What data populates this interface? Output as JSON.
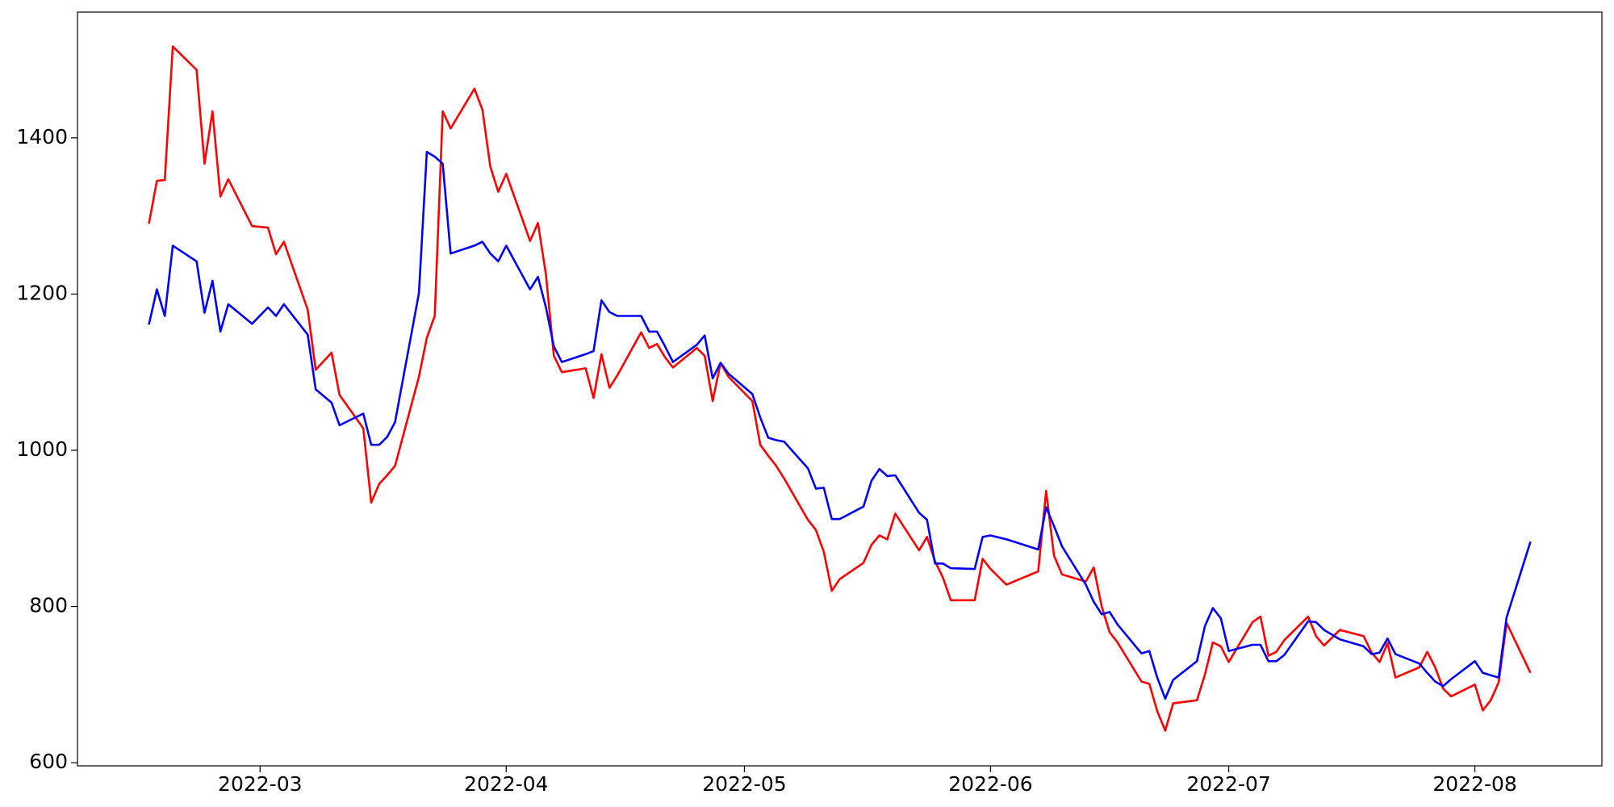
{
  "chart_data": {
    "type": "line",
    "x": [
      "2022-02-15",
      "2022-02-16",
      "2022-02-17",
      "2022-02-18",
      "2022-02-21",
      "2022-02-22",
      "2022-02-23",
      "2022-02-24",
      "2022-02-25",
      "2022-02-28",
      "2022-03-02",
      "2022-03-03",
      "2022-03-04",
      "2022-03-07",
      "2022-03-08",
      "2022-03-10",
      "2022-03-11",
      "2022-03-14",
      "2022-03-15",
      "2022-03-16",
      "2022-03-17",
      "2022-03-18",
      "2022-03-21",
      "2022-03-22",
      "2022-03-23",
      "2022-03-24",
      "2022-03-25",
      "2022-03-28",
      "2022-03-29",
      "2022-03-30",
      "2022-03-31",
      "2022-04-01",
      "2022-04-04",
      "2022-04-05",
      "2022-04-06",
      "2022-04-07",
      "2022-04-08",
      "2022-04-11",
      "2022-04-12",
      "2022-04-13",
      "2022-04-14",
      "2022-04-15",
      "2022-04-18",
      "2022-04-19",
      "2022-04-20",
      "2022-04-21",
      "2022-04-22",
      "2022-04-25",
      "2022-04-26",
      "2022-04-27",
      "2022-04-28",
      "2022-04-29",
      "2022-05-02",
      "2022-05-03",
      "2022-05-04",
      "2022-05-05",
      "2022-05-06",
      "2022-05-09",
      "2022-05-10",
      "2022-05-11",
      "2022-05-12",
      "2022-05-13",
      "2022-05-16",
      "2022-05-17",
      "2022-05-18",
      "2022-05-19",
      "2022-05-20",
      "2022-05-23",
      "2022-05-24",
      "2022-05-25",
      "2022-05-26",
      "2022-05-27",
      "2022-05-30",
      "2022-05-31",
      "2022-06-01",
      "2022-06-03",
      "2022-06-07",
      "2022-06-08",
      "2022-06-09",
      "2022-06-10",
      "2022-06-13",
      "2022-06-14",
      "2022-06-15",
      "2022-06-16",
      "2022-06-17",
      "2022-06-20",
      "2022-06-21",
      "2022-06-22",
      "2022-06-23",
      "2022-06-24",
      "2022-06-27",
      "2022-06-28",
      "2022-06-29",
      "2022-06-30",
      "2022-07-01",
      "2022-07-04",
      "2022-07-05",
      "2022-07-06",
      "2022-07-07",
      "2022-07-08",
      "2022-07-11",
      "2022-07-12",
      "2022-07-13",
      "2022-07-15",
      "2022-07-18",
      "2022-07-19",
      "2022-07-20",
      "2022-07-21",
      "2022-07-22",
      "2022-07-25",
      "2022-07-26",
      "2022-07-27",
      "2022-07-28",
      "2022-07-29",
      "2022-08-01",
      "2022-08-02",
      "2022-08-03",
      "2022-08-04",
      "2022-08-05",
      "2022-08-08"
    ],
    "series": [
      {
        "color": "#ff0000",
        "values": [
          1290,
          1345,
          1346,
          1517,
          1487,
          1367,
          1434,
          1325,
          1347,
          1287,
          1285,
          1251,
          1267,
          1180,
          1103,
          1125,
          1071,
          1028,
          933,
          957,
          968,
          980,
          1094,
          1144,
          1172,
          1434,
          1412,
          1463,
          1436,
          1363,
          1331,
          1354,
          1268,
          1291,
          1225,
          1121,
          1100,
          1105,
          1067,
          1123,
          1080,
          1096,
          1151,
          1131,
          1136,
          1119,
          1106,
          1131,
          1121,
          1063,
          1112,
          1094,
          1063,
          1007,
          993,
          980,
          964,
          911,
          898,
          870,
          820,
          835,
          856,
          879,
          891,
          886,
          919,
          872,
          889,
          858,
          837,
          808,
          808,
          861,
          848,
          828,
          845,
          948,
          865,
          841,
          832,
          850,
          800,
          767,
          754,
          704,
          701,
          666,
          641,
          676,
          680,
          713,
          754,
          749,
          729,
          780,
          787,
          737,
          742,
          757,
          787,
          762,
          750,
          770,
          762,
          741,
          729,
          753,
          709,
          722,
          742,
          722,
          695,
          685,
          700,
          667,
          680,
          703,
          779,
          715
        ]
      },
      {
        "color": "#0000ff",
        "values": [
          1161,
          1206,
          1172,
          1262,
          1242,
          1176,
          1217,
          1152,
          1187,
          1162,
          1183,
          1172,
          1187,
          1148,
          1078,
          1061,
          1032,
          1047,
          1007,
          1007,
          1017,
          1036,
          1201,
          1382,
          1376,
          1367,
          1252,
          1262,
          1267,
          1252,
          1242,
          1262,
          1206,
          1222,
          1183,
          1133,
          1113,
          1123,
          1127,
          1192,
          1177,
          1172,
          1172,
          1152,
          1152,
          1133,
          1113,
          1135,
          1147,
          1092,
          1112,
          1098,
          1072,
          1042,
          1016,
          1013,
          1011,
          977,
          951,
          952,
          912,
          912,
          928,
          961,
          976,
          967,
          968,
          920,
          911,
          855,
          855,
          849,
          848,
          889,
          891,
          886,
          873,
          927,
          903,
          877,
          828,
          806,
          790,
          793,
          777,
          740,
          743,
          709,
          682,
          706,
          730,
          775,
          798,
          785,
          743,
          751,
          751,
          730,
          730,
          738,
          781,
          780,
          770,
          758,
          749,
          739,
          741,
          759,
          739,
          727,
          715,
          704,
          698,
          707,
          730,
          715,
          712,
          709,
          786,
          883
        ]
      }
    ],
    "xlim": [
      "2022-02-06",
      "2022-08-17"
    ],
    "xticks": [
      "2022-03",
      "2022-04",
      "2022-05",
      "2022-06",
      "2022-07",
      "2022-08"
    ],
    "ylim": [
      596,
      1561
    ],
    "yticks": [
      600,
      800,
      1000,
      1200,
      1400
    ],
    "grid": false
  }
}
